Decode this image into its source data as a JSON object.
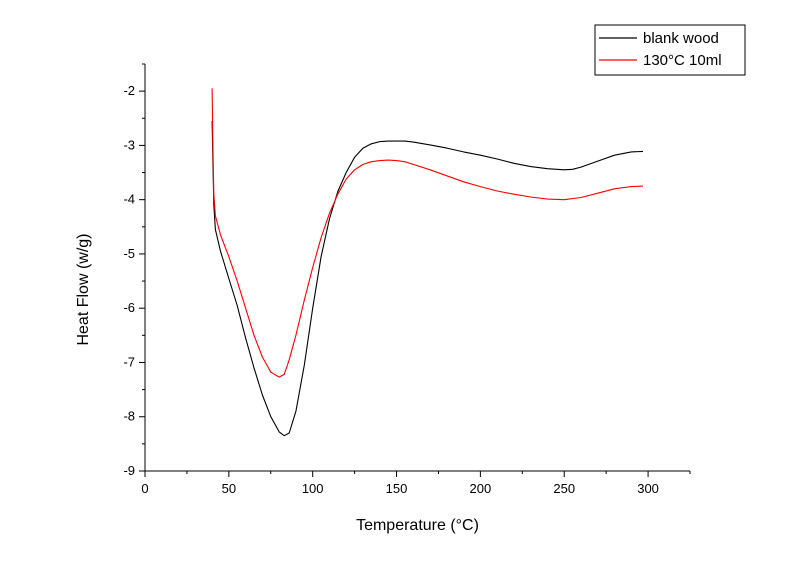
{
  "chart_data": {
    "type": "line",
    "xlabel": "Temperature (°C)",
    "ylabel": "Heat Flow (w/g)",
    "xlim": [
      0,
      325
    ],
    "ylim": [
      -9,
      -1.5
    ],
    "xticks": [
      0,
      50,
      100,
      150,
      200,
      250,
      300
    ],
    "yticks": [
      -9,
      -8,
      -7,
      -6,
      -5,
      -4,
      -3,
      -2
    ],
    "legend_position": "top-right",
    "grid": false,
    "series": [
      {
        "name": "blank wood",
        "color": "#000000",
        "x": [
          40,
          40.5,
          41,
          42,
          45,
          50,
          55,
          60,
          65,
          70,
          75,
          80,
          83,
          86,
          90,
          95,
          100,
          105,
          110,
          115,
          120,
          125,
          130,
          135,
          140,
          145,
          150,
          155,
          160,
          170,
          180,
          190,
          200,
          210,
          220,
          230,
          240,
          250,
          255,
          260,
          270,
          280,
          290,
          297
        ],
        "y": [
          -2.55,
          -3.3,
          -4.1,
          -4.55,
          -4.95,
          -5.45,
          -5.95,
          -6.55,
          -7.1,
          -7.6,
          -8.0,
          -8.28,
          -8.35,
          -8.3,
          -7.9,
          -7.05,
          -6.0,
          -5.05,
          -4.35,
          -3.85,
          -3.5,
          -3.22,
          -3.05,
          -2.97,
          -2.93,
          -2.92,
          -2.92,
          -2.92,
          -2.94,
          -2.99,
          -3.05,
          -3.12,
          -3.18,
          -3.25,
          -3.33,
          -3.39,
          -3.43,
          -3.45,
          -3.44,
          -3.4,
          -3.29,
          -3.18,
          -3.12,
          -3.11
        ]
      },
      {
        "name": "130°C 10ml",
        "color": "#ff0000",
        "x": [
          40,
          40.5,
          41,
          42,
          45,
          50,
          55,
          60,
          65,
          70,
          75,
          80,
          83,
          86,
          90,
          95,
          100,
          105,
          110,
          115,
          120,
          125,
          130,
          135,
          140,
          145,
          150,
          155,
          160,
          170,
          180,
          190,
          200,
          210,
          220,
          230,
          240,
          250,
          260,
          270,
          280,
          290,
          297
        ],
        "y": [
          -1.95,
          -3.0,
          -3.9,
          -4.3,
          -4.65,
          -5.05,
          -5.5,
          -6.0,
          -6.5,
          -6.9,
          -7.18,
          -7.27,
          -7.22,
          -6.95,
          -6.5,
          -5.85,
          -5.25,
          -4.7,
          -4.25,
          -3.9,
          -3.62,
          -3.45,
          -3.35,
          -3.3,
          -3.28,
          -3.27,
          -3.28,
          -3.3,
          -3.35,
          -3.45,
          -3.56,
          -3.67,
          -3.76,
          -3.84,
          -3.9,
          -3.95,
          -3.99,
          -4.0,
          -3.96,
          -3.88,
          -3.8,
          -3.76,
          -3.75
        ]
      }
    ]
  }
}
